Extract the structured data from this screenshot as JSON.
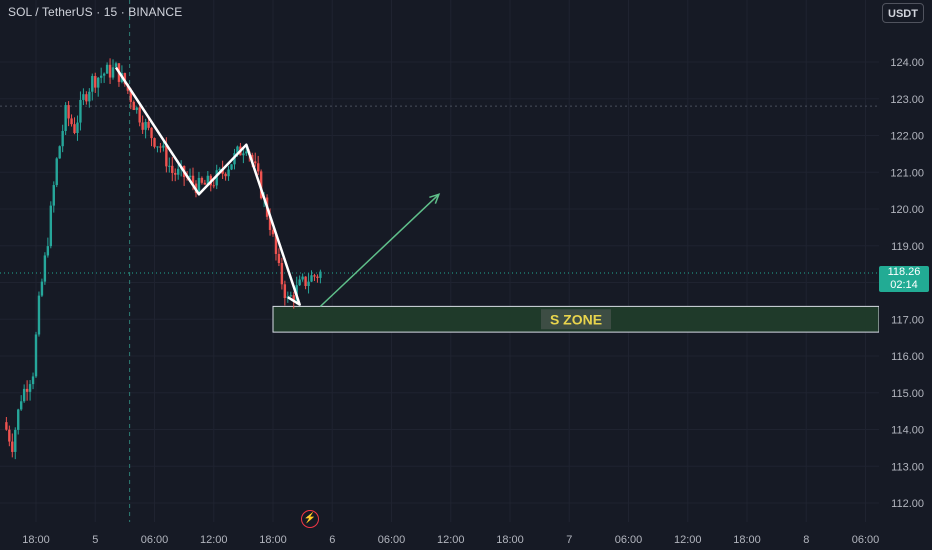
{
  "header": {
    "symbol_title": "SOL / TetherUS · 15 · BINANCE",
    "currency_button": "USDT"
  },
  "price_badge": {
    "price": "118.26",
    "countdown": "02:14",
    "color": "#22ab94"
  },
  "annotation": {
    "zone_label": "S ZONE",
    "zone_top": 117.35,
    "zone_bottom": 116.65,
    "zone_start_x": 4.0,
    "zone_fill": "#1f3a2a",
    "zone_label_color": "#e8d44d"
  },
  "icons": {
    "flash_icon": "flash-icon"
  },
  "colors": {
    "background": "#161a25",
    "up": "#26a69a",
    "down": "#ef5350",
    "grid": "#1f2330",
    "axis_text": "#b2b5be"
  },
  "chart_data": {
    "type": "candlestick",
    "title": "SOL / TetherUS · 15 · BINANCE",
    "ylim": [
      112,
      125
    ],
    "y_ticks": [
      112,
      113,
      114,
      115,
      116,
      117,
      118,
      119,
      120,
      121,
      122,
      123,
      124
    ],
    "y_tick_labels": [
      "112.00",
      "113.00",
      "114.00",
      "115.00",
      "116.00",
      "117.00",
      "118.00",
      "119.00",
      "120.00",
      "121.00",
      "122.00",
      "123.00",
      "124.00"
    ],
    "x_ticks": [
      0,
      1,
      2,
      3,
      4,
      5,
      6,
      7,
      8,
      9,
      10,
      11,
      12,
      13,
      14
    ],
    "x_tick_labels": [
      "18:00",
      "5",
      "06:00",
      "12:00",
      "18:00",
      "6",
      "06:00",
      "12:00",
      "18:00",
      "7",
      "06:00",
      "12:00",
      "18:00",
      "8",
      "06:00"
    ],
    "xlim": [
      -0.55,
      14.35
    ],
    "current_price": 118.26,
    "dashed_reference_price": 122.8,
    "dashed_day_marker_x": 1.58,
    "series": [
      {
        "close_path": [
          [
            -0.55,
            114.2
          ],
          [
            -0.4,
            113.6
          ],
          [
            -0.25,
            114.9
          ],
          [
            -0.05,
            115.6
          ],
          [
            0.05,
            117.4
          ],
          [
            0.2,
            119.2
          ],
          [
            0.35,
            121.3
          ],
          [
            0.5,
            122.6
          ],
          [
            0.65,
            122.2
          ],
          [
            0.8,
            123.0
          ],
          [
            0.95,
            123.5
          ],
          [
            1.15,
            123.7
          ],
          [
            1.35,
            123.8
          ],
          [
            1.5,
            123.4
          ],
          [
            1.7,
            122.7
          ],
          [
            1.9,
            122.1
          ],
          [
            2.1,
            121.7
          ],
          [
            2.3,
            121.0
          ],
          [
            2.5,
            120.9
          ],
          [
            2.75,
            120.6
          ],
          [
            2.95,
            120.7
          ],
          [
            3.15,
            121.0
          ],
          [
            3.35,
            121.4
          ],
          [
            3.55,
            121.8
          ],
          [
            3.75,
            120.8
          ],
          [
            3.95,
            119.6
          ],
          [
            4.1,
            118.3
          ],
          [
            4.25,
            117.5
          ],
          [
            4.45,
            117.9
          ],
          [
            4.6,
            118.1
          ],
          [
            4.8,
            118.26
          ]
        ]
      }
    ],
    "drawn_path": [
      [
        1.35,
        123.85
      ],
      [
        2.75,
        120.4
      ],
      [
        3.55,
        121.75
      ],
      [
        4.45,
        117.4
      ],
      [
        4.25,
        117.6
      ]
    ],
    "projection_arrow": {
      "from": [
        4.8,
        117.35
      ],
      "to": [
        6.8,
        120.4
      ]
    }
  }
}
